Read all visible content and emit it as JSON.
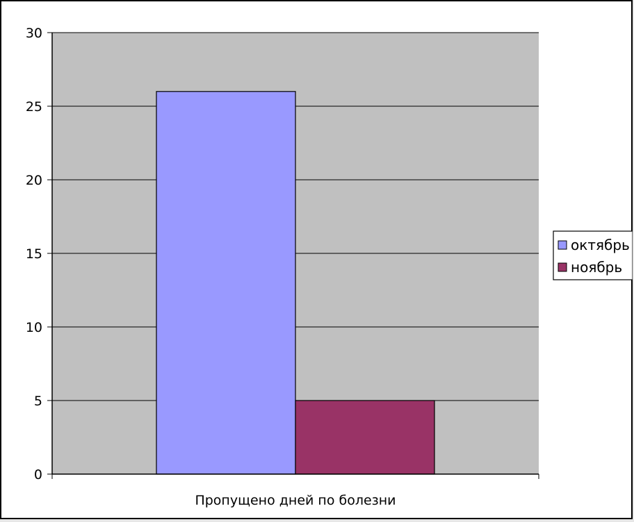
{
  "chart_data": {
    "type": "bar",
    "categories": [
      "Пропущено дней по болезни"
    ],
    "series": [
      {
        "name": "октябрь",
        "values": [
          26
        ],
        "color": "#9999ff"
      },
      {
        "name": "ноябрь",
        "values": [
          5
        ],
        "color": "#993366"
      }
    ],
    "ylim": [
      0,
      30
    ],
    "yticks": [
      0,
      5,
      10,
      15,
      20,
      25,
      30
    ],
    "grid": true,
    "legend": "right",
    "plot_background": "#c0c0c0",
    "chart_background": "#ffffff"
  }
}
